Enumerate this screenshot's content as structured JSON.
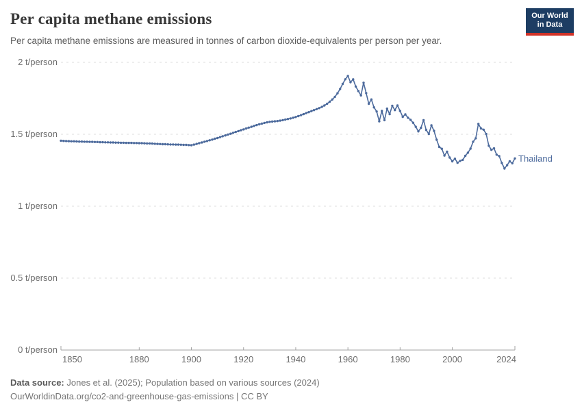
{
  "header": {
    "title": "Per capita methane emissions",
    "subtitle": "Per capita methane emissions are measured in tonnes of carbon dioxide-equivalents per person per year."
  },
  "logo": {
    "line1": "Our World",
    "line2": "in Data"
  },
  "colors": {
    "line_blue": "#4C6A9C",
    "logo_navy": "#1d3d63",
    "logo_red": "#d13328",
    "grid": "#dcdcdc",
    "axis": "#a3a3a3"
  },
  "chart_data": {
    "type": "line",
    "title": "Per capita methane emissions",
    "unit": "t/person",
    "xlabel": "",
    "ylabel": "t/person",
    "xlim": [
      1850,
      2024
    ],
    "ylim": [
      0,
      2
    ],
    "grid": "horizontal dashed",
    "legend_position": "end-of-line label",
    "x_ticks": [
      1850,
      1880,
      1900,
      1920,
      1940,
      1960,
      1980,
      2000,
      2024
    ],
    "y_ticks": [
      0,
      0.5,
      1,
      1.5,
      2
    ],
    "y_tick_labels": [
      "0 t/person",
      "0.5 t/person",
      "1 t/person",
      "1.5 t/person",
      "2 t/person"
    ],
    "series": [
      {
        "name": "Thailand",
        "color": "#4C6A9C",
        "year_start": 1850,
        "year_end": 2024,
        "values": [
          1.455,
          1.454,
          1.453,
          1.452,
          1.451,
          1.451,
          1.45,
          1.449,
          1.449,
          1.448,
          1.448,
          1.447,
          1.447,
          1.446,
          1.446,
          1.445,
          1.445,
          1.444,
          1.444,
          1.443,
          1.443,
          1.442,
          1.442,
          1.441,
          1.441,
          1.44,
          1.44,
          1.44,
          1.439,
          1.439,
          1.438,
          1.438,
          1.437,
          1.436,
          1.436,
          1.435,
          1.434,
          1.433,
          1.432,
          1.431,
          1.431,
          1.43,
          1.429,
          1.429,
          1.428,
          1.428,
          1.427,
          1.426,
          1.426,
          1.425,
          1.424,
          1.428,
          1.433,
          1.438,
          1.443,
          1.448,
          1.453,
          1.458,
          1.463,
          1.469,
          1.474,
          1.48,
          1.486,
          1.492,
          1.498,
          1.504,
          1.51,
          1.516,
          1.522,
          1.528,
          1.534,
          1.54,
          1.546,
          1.552,
          1.558,
          1.564,
          1.569,
          1.574,
          1.579,
          1.583,
          1.586,
          1.588,
          1.59,
          1.592,
          1.595,
          1.598,
          1.602,
          1.606,
          1.61,
          1.615,
          1.62,
          1.626,
          1.633,
          1.64,
          1.647,
          1.654,
          1.661,
          1.668,
          1.675,
          1.682,
          1.69,
          1.7,
          1.712,
          1.726,
          1.742,
          1.76,
          1.785,
          1.815,
          1.85,
          1.882,
          1.905,
          1.862,
          1.882,
          1.832,
          1.8,
          1.77,
          1.858,
          1.786,
          1.712,
          1.742,
          1.687,
          1.658,
          1.59,
          1.662,
          1.598,
          1.678,
          1.64,
          1.698,
          1.668,
          1.7,
          1.662,
          1.621,
          1.638,
          1.615,
          1.6,
          1.58,
          1.552,
          1.52,
          1.545,
          1.598,
          1.53,
          1.502,
          1.562,
          1.524,
          1.462,
          1.412,
          1.399,
          1.352,
          1.379,
          1.338,
          1.312,
          1.33,
          1.302,
          1.315,
          1.322,
          1.35,
          1.372,
          1.4,
          1.448,
          1.472,
          1.572,
          1.54,
          1.532,
          1.502,
          1.42,
          1.392,
          1.402,
          1.358,
          1.348,
          1.3,
          1.262,
          1.285,
          1.312,
          1.298,
          1.332
        ]
      }
    ]
  },
  "footer": {
    "source_label": "Data source:",
    "source_text": "Jones et al. (2025); Population based on various sources (2024)",
    "url_line": "OurWorldinData.org/co2-and-greenhouse-gas-emissions | CC BY"
  }
}
